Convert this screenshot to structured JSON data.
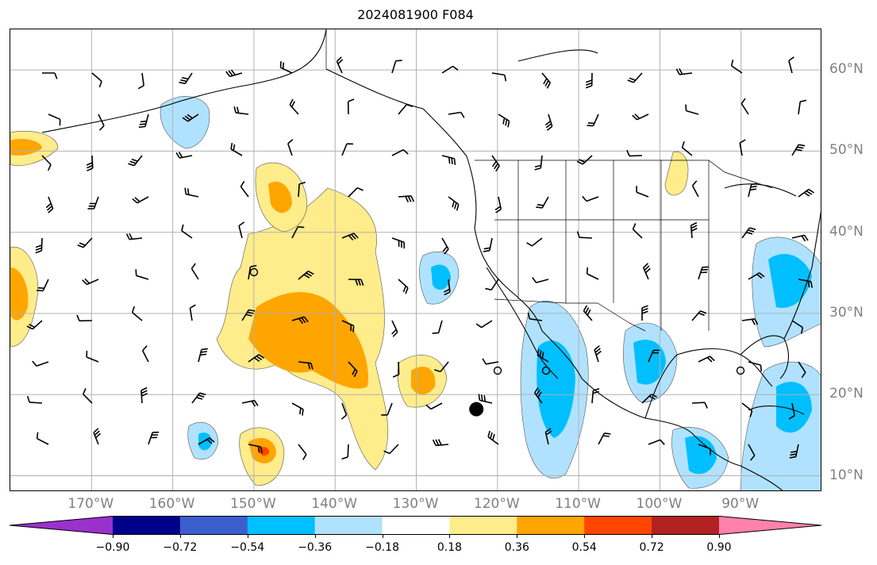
{
  "title": "2024081900 F084",
  "map": {
    "lon_labels": [
      {
        "text": "170°W",
        "lon": -170
      },
      {
        "text": "160°W",
        "lon": -160
      },
      {
        "text": "150°W",
        "lon": -150
      },
      {
        "text": "140°W",
        "lon": -140
      },
      {
        "text": "130°W",
        "lon": -130
      },
      {
        "text": "120°W",
        "lon": -120
      },
      {
        "text": "110°W",
        "lon": -110
      },
      {
        "text": "100°W",
        "lon": -100
      },
      {
        "text": "90°W",
        "lon": -90
      }
    ],
    "lat_labels": [
      {
        "text": "60°N",
        "lat": 60
      },
      {
        "text": "50°N",
        "lat": 50
      },
      {
        "text": "40°N",
        "lat": 40
      },
      {
        "text": "30°N",
        "lat": 30
      },
      {
        "text": "20°N",
        "lat": 20
      },
      {
        "text": "10°N",
        "lat": 10
      }
    ],
    "extent": {
      "lon_min": -180,
      "lon_max": -80,
      "lat_min": 8,
      "lat_max": 65
    },
    "grid": true,
    "storm_marker": {
      "lon": -122.6,
      "lat": 18.2
    },
    "land_color": "#ffffff",
    "coast_color": "#000000"
  },
  "colorbar": {
    "ticks": [
      "−0.90",
      "−0.72",
      "−0.54",
      "−0.36",
      "−0.18",
      "0.18",
      "0.36",
      "0.54",
      "0.72",
      "0.90"
    ],
    "colors": [
      "#9932cc",
      "#00008b",
      "#3a5fcd",
      "#00bfff",
      "#b0e2ff",
      "#ffffff",
      "#ffec8b",
      "#ffa500",
      "#ff4500",
      "#b22222",
      "#ff82ab"
    ]
  }
}
